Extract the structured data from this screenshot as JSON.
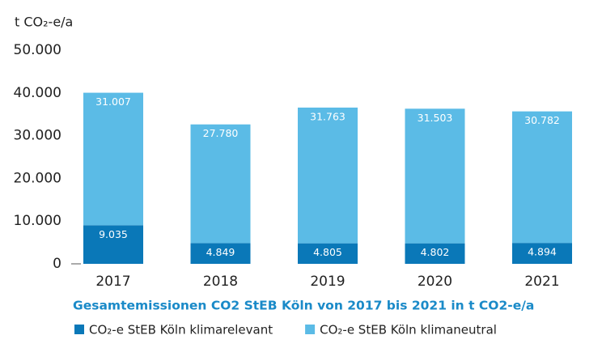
{
  "chart_data": {
    "type": "stacked_bar",
    "y_label": "t CO₂-e/a",
    "title": "Gesamtemissionen CO2 StEB Köln von 2017 bis 2021 in t CO2-e/a",
    "categories": [
      "2017",
      "2018",
      "2019",
      "2020",
      "2021"
    ],
    "series": [
      {
        "name": "CO₂-e StEB Köln klimarelevant",
        "color": "#0a78b8",
        "values": [
          9035,
          4849,
          4805,
          4802,
          4894
        ],
        "value_labels": [
          "9.035",
          "4.849",
          "4.805",
          "4.802",
          "4.894"
        ]
      },
      {
        "name": "CO₂-e StEB Köln klimaneutral",
        "color": "#5bbbe6",
        "values": [
          31007,
          27780,
          31763,
          31503,
          30782
        ],
        "value_labels": [
          "31.007",
          "27.780",
          "31.763",
          "31.503",
          "30.782"
        ]
      }
    ],
    "ylim": [
      0,
      50000
    ],
    "yticks": [
      0,
      {
        "value": 10000,
        "label": "10.000"
      },
      {
        "value": 20000,
        "label": "20.000"
      },
      {
        "value": 30000,
        "label": "30.000"
      },
      {
        "value": 40000,
        "label": "40.000"
      },
      {
        "value": 50000,
        "label": "50.000"
      }
    ]
  }
}
